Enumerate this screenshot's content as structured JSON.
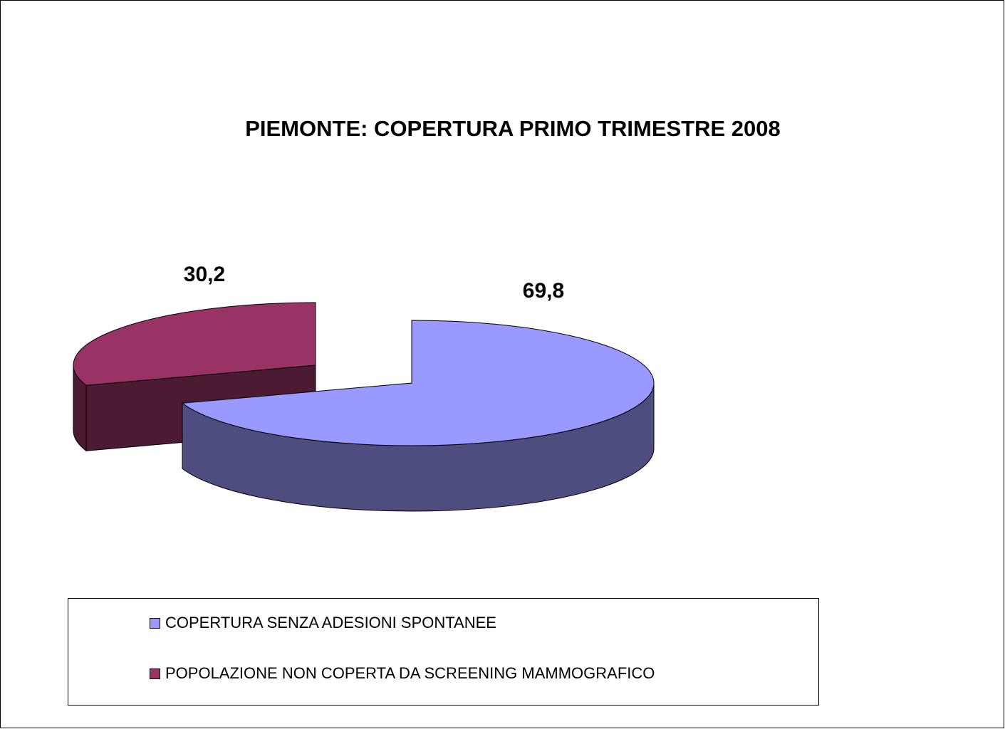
{
  "chart_data": {
    "type": "pie3d",
    "title": "PIEMONTE: COPERTURA PRIMO TRIMESTRE 2008",
    "categories": [
      "COPERTURA SENZA ADESIONI SPONTANEE",
      "POPOLAZIONE NON COPERTA DA SCREENING MAMMOGRAFICO"
    ],
    "values": [
      69.8,
      30.2
    ],
    "value_labels": [
      "69,8",
      "30,2"
    ],
    "colors": [
      "#9999ff",
      "#993366"
    ]
  }
}
